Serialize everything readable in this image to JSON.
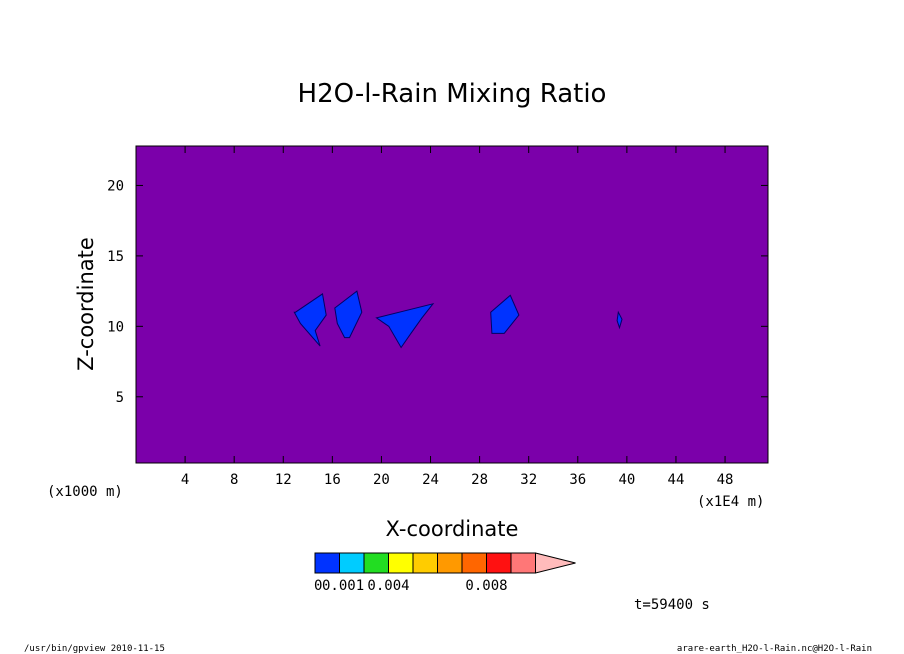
{
  "chart_data": {
    "type": "contour",
    "title": "H2O-l-Rain Mixing Ratio",
    "xlabel": "X-coordinate",
    "ylabel": "Z-coordinate",
    "x_unit_left": "(x1000 m)",
    "x_unit_right": "(x1E4 m)",
    "xlim": [
      0,
      51.5
    ],
    "ylim": [
      0.3,
      22.8
    ],
    "x_ticks": [
      4,
      8,
      12,
      16,
      20,
      24,
      28,
      32,
      36,
      40,
      44,
      48
    ],
    "y_ticks": [
      5,
      10,
      15,
      20
    ],
    "background_color": "#7b00aa",
    "cells": [
      {
        "x": [
          13.0,
          15.2,
          15.5,
          14.6,
          15.0,
          13.4,
          12.9
        ],
        "y": [
          11.0,
          12.3,
          10.8,
          9.7,
          8.6,
          10.2,
          11.0
        ]
      },
      {
        "x": [
          16.2,
          18.0,
          18.4,
          17.4,
          17.0,
          16.4,
          16.2
        ],
        "y": [
          11.3,
          12.5,
          11.0,
          9.2,
          9.2,
          10.2,
          11.3
        ]
      },
      {
        "x": [
          19.6,
          24.2,
          23.3,
          22.4,
          21.6,
          20.6,
          19.6
        ],
        "y": [
          10.6,
          11.6,
          10.6,
          9.5,
          8.5,
          10.0,
          10.6
        ]
      },
      {
        "x": [
          28.9,
          30.5,
          31.2,
          30.0,
          29.0,
          28.9
        ],
        "y": [
          11.0,
          12.2,
          10.8,
          9.5,
          9.5,
          11.0
        ]
      },
      {
        "x": [
          39.3,
          39.6,
          39.4,
          39.2,
          39.3
        ],
        "y": [
          11.0,
          10.5,
          9.9,
          10.4,
          11.0
        ]
      }
    ],
    "colorbar": {
      "colors": [
        "#0033ff",
        "#00ccff",
        "#22dd22",
        "#ffff00",
        "#ffcc00",
        "#ff9900",
        "#ff6600",
        "#ff1111",
        "#ff7777",
        "#ffbbbb"
      ],
      "labels": [
        "0.001",
        "0.004",
        "0.008"
      ],
      "underlying_label": "0",
      "extend": "max"
    },
    "time_label": "t=59400 s"
  },
  "footer": {
    "left": "/usr/bin/gpview  2010-11-15",
    "right": "arare-earth_H2O-l-Rain.nc@H2O-l-Rain"
  }
}
